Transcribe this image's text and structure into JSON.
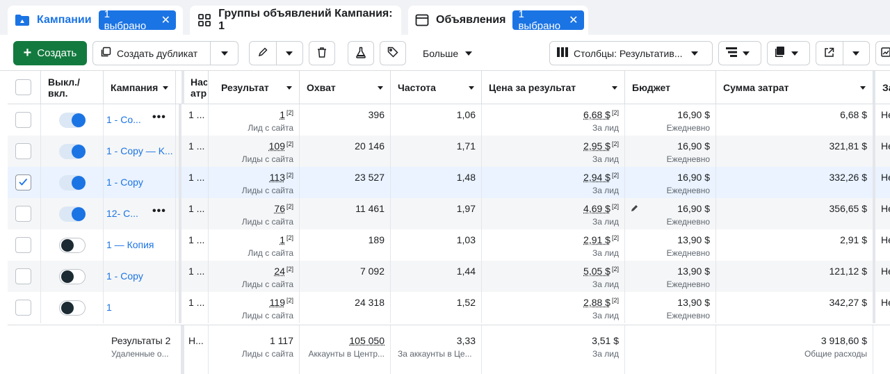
{
  "tabs": [
    {
      "label": "Кампании",
      "badge": "1 выбрано",
      "close": "✕"
    },
    {
      "label": "Группы объявлений Кампания: 1"
    },
    {
      "label": "Объявления",
      "badge": "1 выбрано",
      "close": "✕"
    }
  ],
  "toolbar": {
    "create_label": "Создать",
    "duplicate_label": "Создать дубликат",
    "more_label": "Больше",
    "columns_label": "Столбцы: Результатив..."
  },
  "headers": {
    "onoff": "Выкл./ вкл.",
    "campaign": "Кампания",
    "attribution": "Нас атр",
    "result": "Результат",
    "reach": "Охват",
    "frequency": "Частота",
    "cost": "Цена за результат",
    "budget": "Бюджет",
    "spent": "Сумма затрат",
    "next": "За"
  },
  "rows": [
    {
      "checked": false,
      "on": true,
      "name": "1 - Co...",
      "dots": true,
      "attr": "1 ...",
      "result": "1",
      "result_sub": "Лид с сайта",
      "reach": "396",
      "freq": "1,06",
      "cost": "6,68 $",
      "cost_sub": "За лид",
      "budget": "16,90 $",
      "budget_sub": "Ежедневно",
      "spent": "6,68 $",
      "next": "Не"
    },
    {
      "checked": false,
      "on": true,
      "name": "1 - Copy — K...",
      "dots": false,
      "attr": "1 ...",
      "result": "109",
      "result_sub": "Лиды с сайта",
      "reach": "20 146",
      "freq": "1,71",
      "cost": "2,95 $",
      "cost_sub": "За лид",
      "budget": "16,90 $",
      "budget_sub": "Ежедневно",
      "spent": "321,81 $",
      "next": "Не"
    },
    {
      "checked": true,
      "on": true,
      "name": "1 - Copy",
      "dots": false,
      "attr": "1 ...",
      "result": "113",
      "result_sub": "Лиды с сайта",
      "reach": "23 527",
      "freq": "1,48",
      "cost": "2,94 $",
      "cost_sub": "За лид",
      "budget": "16,90 $",
      "budget_sub": "Ежедневно",
      "spent": "332,26 $",
      "next": "Не"
    },
    {
      "checked": false,
      "on": true,
      "name": "12- C...",
      "dots": true,
      "attr": "1 ...",
      "result": "76",
      "result_sub": "Лиды с сайта",
      "reach": "11 461",
      "freq": "1,97",
      "cost": "4,69 $",
      "cost_sub": "За лид",
      "budget": "16,90 $",
      "budget_sub": "Ежедневно",
      "spent": "356,65 $",
      "next": "Не"
    },
    {
      "checked": false,
      "on": false,
      "name": "1 — Копия",
      "dots": false,
      "attr": "1 ...",
      "result": "1",
      "result_sub": "Лид с сайта",
      "reach": "189",
      "freq": "1,03",
      "cost": "2,91 $",
      "cost_sub": "За лид",
      "budget": "13,90 $",
      "budget_sub": "Ежедневно",
      "spent": "2,91 $",
      "next": "Не"
    },
    {
      "checked": false,
      "on": false,
      "name": "1 - Copy",
      "dots": false,
      "attr": "1 ...",
      "result": "24",
      "result_sub": "Лиды с сайта",
      "reach": "7 092",
      "freq": "1,44",
      "cost": "5,05 $",
      "cost_sub": "За лид",
      "budget": "13,90 $",
      "budget_sub": "Ежедневно",
      "spent": "121,12 $",
      "next": "Не"
    },
    {
      "checked": false,
      "on": false,
      "name": "1",
      "dots": false,
      "attr": "1 ...",
      "result": "119",
      "result_sub": "Лиды с сайта",
      "reach": "24 318",
      "freq": "1,52",
      "cost": "2,88 $",
      "cost_sub": "За лид",
      "budget": "13,90 $",
      "budget_sub": "Ежедневно",
      "spent": "342,27 $",
      "next": "Не"
    }
  ],
  "sup": "[2]",
  "footer": {
    "title": "Результаты 2",
    "title_sub": "Удаленные о...",
    "attr": "Н...",
    "result": "1 117",
    "result_sub": "Лиды с сайта",
    "reach": "105 050",
    "reach_sub": "Аккаунты в Центр...",
    "freq": "3,33",
    "freq_sub": "За аккаунты в Це...",
    "cost": "3,51 $",
    "cost_sub": "За лид",
    "spent": "3 918,60 $",
    "spent_sub": "Общие расходы"
  },
  "colors": {
    "accent": "#1b74e4",
    "create_green": "#137a3f",
    "selected_row": "#eaf3ff",
    "alt_row": "#f5f6f7"
  }
}
